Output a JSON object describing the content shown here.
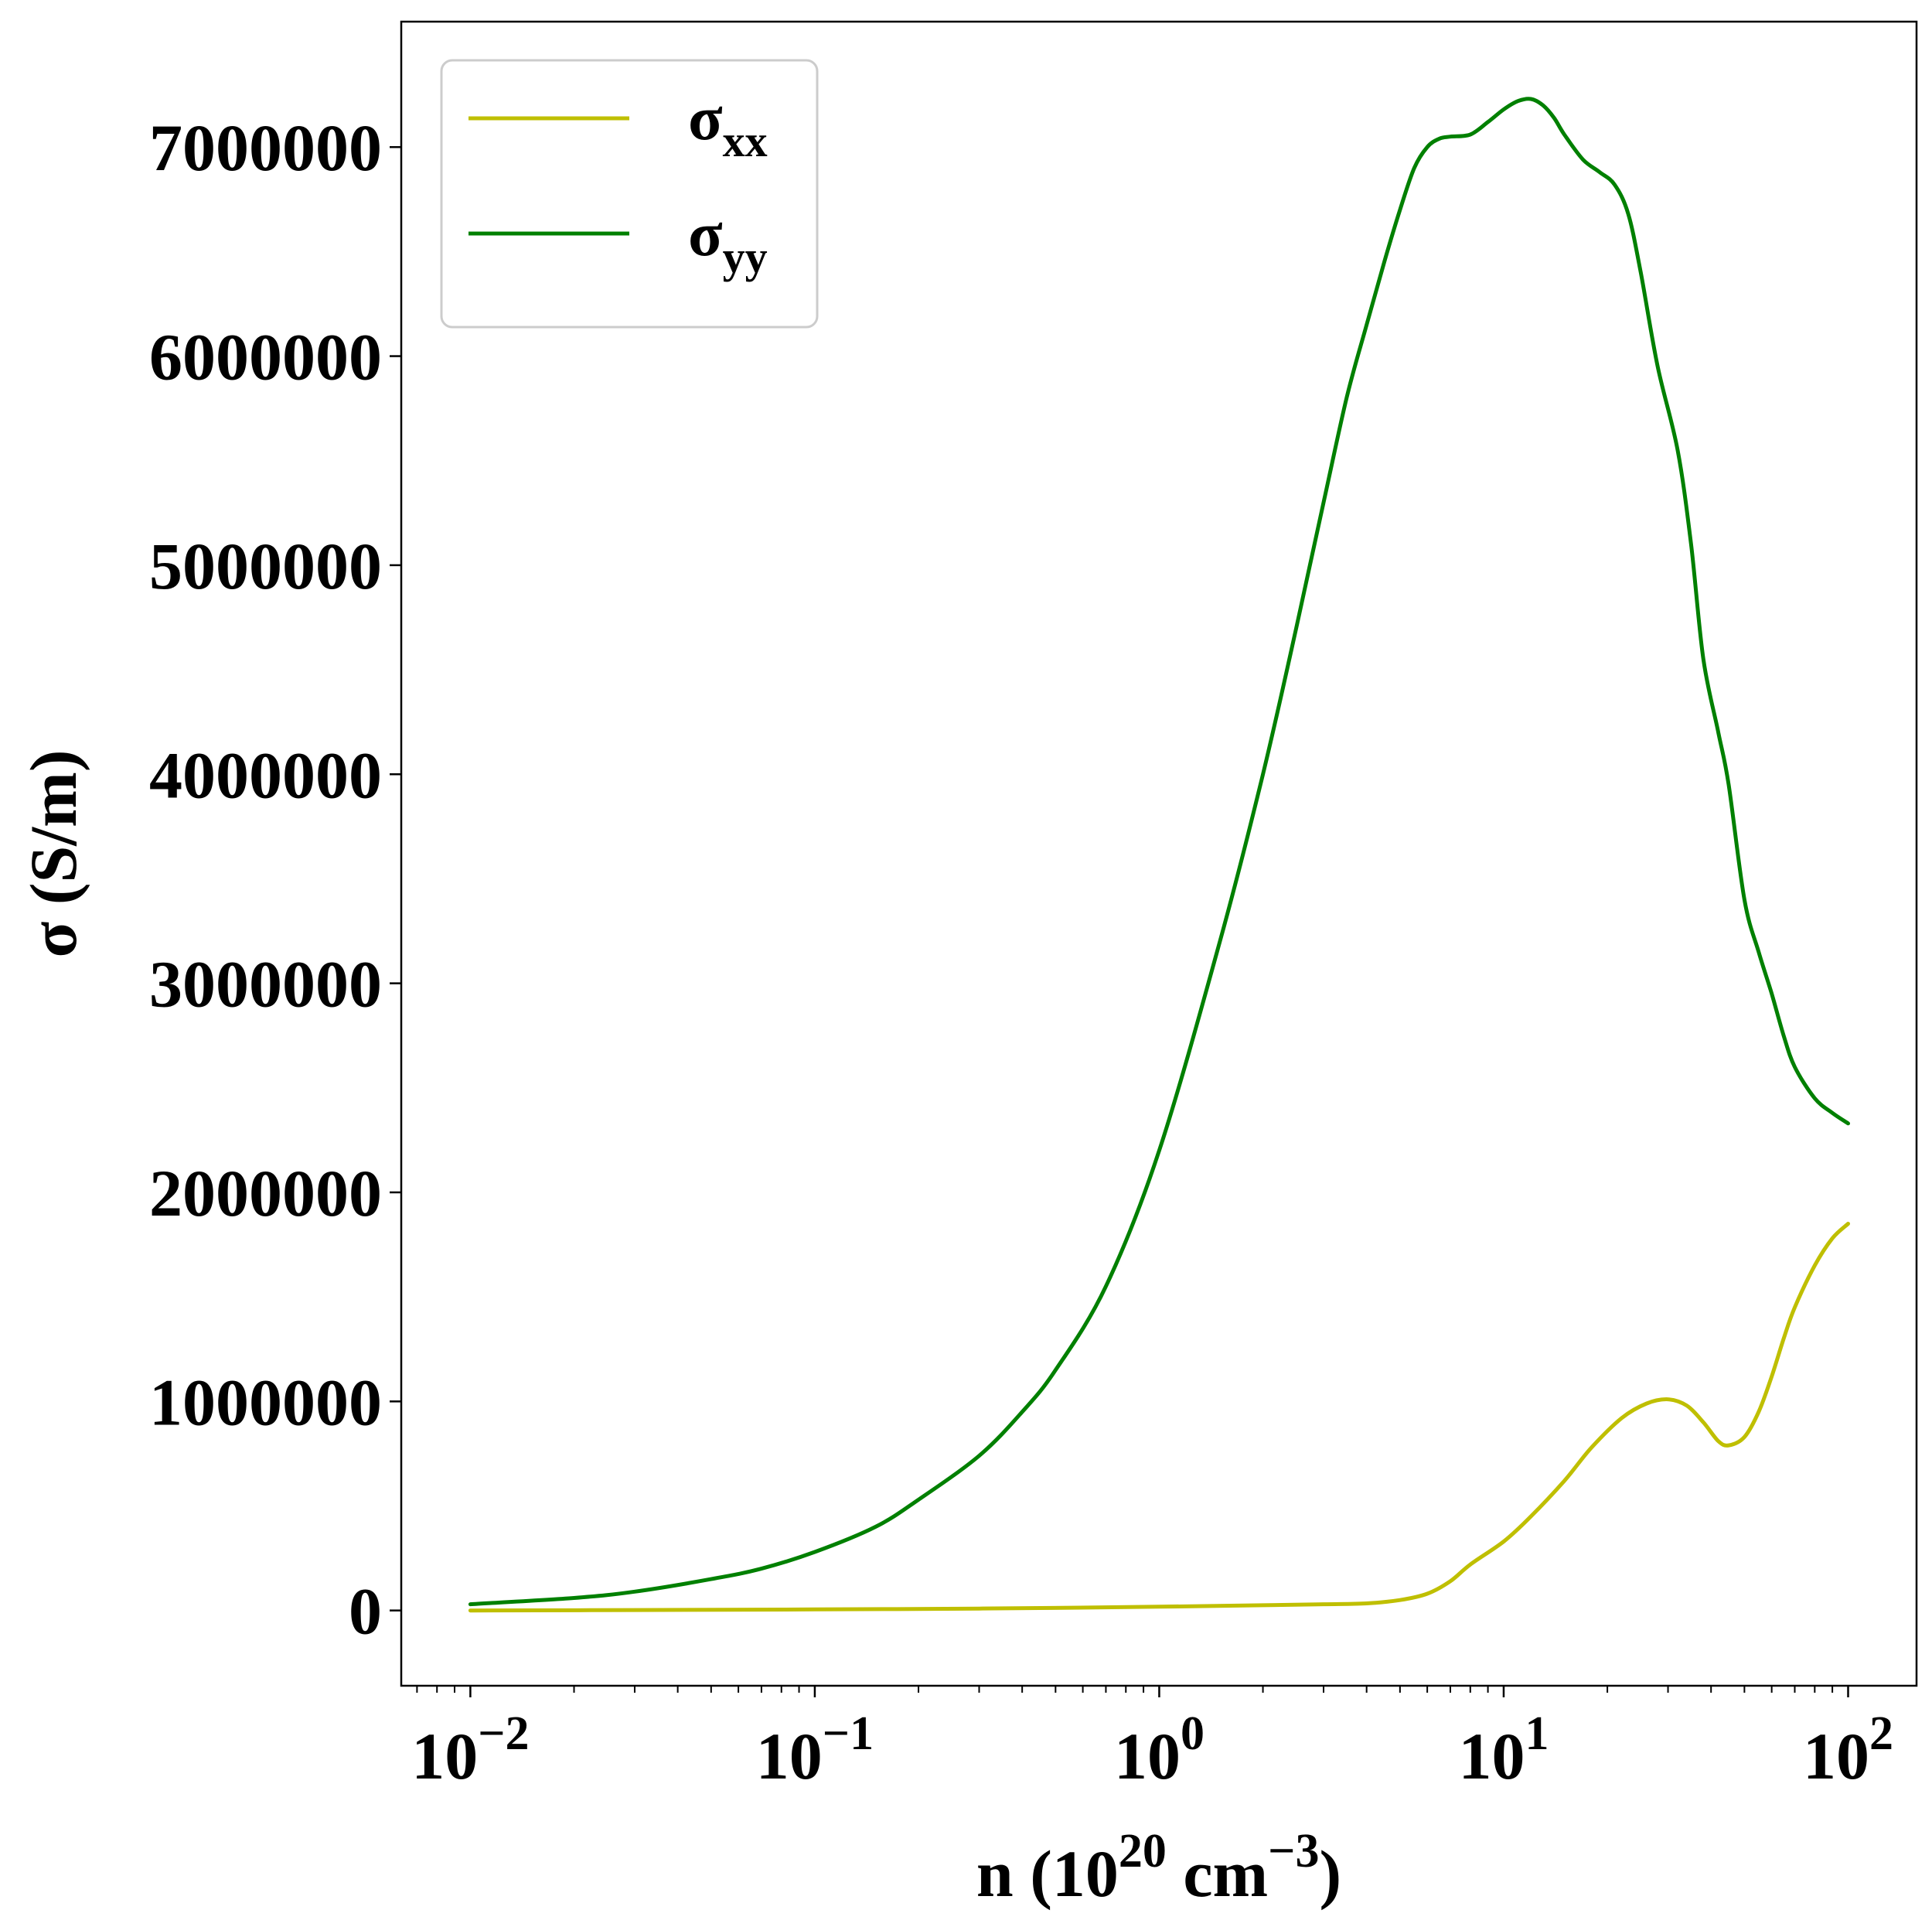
{
  "chart_data": {
    "type": "line",
    "title": "",
    "xlabel": {
      "base": "n (10",
      "exp1": "20",
      "mid": " cm",
      "exp2": "−3",
      "end": ")"
    },
    "ylabel": "σ (S/m)",
    "x_scale": "log",
    "xlim": [
      0.0063,
      158
    ],
    "ylim": [
      -360000,
      7600000
    ],
    "grid": false,
    "legend_position": "top-left",
    "x_ticks": [
      {
        "value": 0.01,
        "base": "10",
        "exp": "−2"
      },
      {
        "value": 0.1,
        "base": "10",
        "exp": "−1"
      },
      {
        "value": 1,
        "base": "10",
        "exp": "0"
      },
      {
        "value": 10,
        "base": "10",
        "exp": "1"
      },
      {
        "value": 100,
        "base": "10",
        "exp": "2"
      }
    ],
    "y_ticks": [
      {
        "value": 0,
        "label": "0"
      },
      {
        "value": 1000000,
        "label": "1000000"
      },
      {
        "value": 2000000,
        "label": "2000000"
      },
      {
        "value": 3000000,
        "label": "3000000"
      },
      {
        "value": 4000000,
        "label": "4000000"
      },
      {
        "value": 5000000,
        "label": "5000000"
      },
      {
        "value": 6000000,
        "label": "6000000"
      },
      {
        "value": 7000000,
        "label": "7000000"
      }
    ],
    "series": [
      {
        "name": "σxx",
        "label_base": "σ",
        "label_sub": "xx",
        "color": "#bfbf00",
        "points": [
          [
            0.01,
            0
          ],
          [
            0.03,
            2000
          ],
          [
            0.1,
            5000
          ],
          [
            0.3,
            9000
          ],
          [
            1,
            18000
          ],
          [
            2,
            25000
          ],
          [
            3,
            30000
          ],
          [
            4,
            34000
          ],
          [
            5,
            50000
          ],
          [
            6,
            80000
          ],
          [
            7,
            140000
          ],
          [
            8,
            220000
          ],
          [
            10,
            330000
          ],
          [
            12,
            450000
          ],
          [
            15,
            620000
          ],
          [
            18,
            780000
          ],
          [
            22,
            920000
          ],
          [
            26,
            990000
          ],
          [
            30,
            1010000
          ],
          [
            34,
            980000
          ],
          [
            38,
            900000
          ],
          [
            42,
            810000
          ],
          [
            45,
            790000
          ],
          [
            50,
            830000
          ],
          [
            55,
            950000
          ],
          [
            60,
            1120000
          ],
          [
            65,
            1300000
          ],
          [
            70,
            1450000
          ],
          [
            80,
            1650000
          ],
          [
            90,
            1780000
          ],
          [
            100,
            1850000
          ]
        ]
      },
      {
        "name": "σyy",
        "label_base": "σ",
        "label_sub": "yy",
        "color": "#008000",
        "points": [
          [
            0.01,
            30000
          ],
          [
            0.02,
            60000
          ],
          [
            0.03,
            90000
          ],
          [
            0.05,
            150000
          ],
          [
            0.07,
            200000
          ],
          [
            0.1,
            280000
          ],
          [
            0.15,
            400000
          ],
          [
            0.2,
            530000
          ],
          [
            0.3,
            740000
          ],
          [
            0.4,
            950000
          ],
          [
            0.5,
            1150000
          ],
          [
            0.7,
            1550000
          ],
          [
            1,
            2200000
          ],
          [
            1.5,
            3200000
          ],
          [
            2,
            4000000
          ],
          [
            2.5,
            4700000
          ],
          [
            3,
            5300000
          ],
          [
            3.5,
            5800000
          ],
          [
            4,
            6150000
          ],
          [
            4.5,
            6450000
          ],
          [
            5,
            6700000
          ],
          [
            5.5,
            6900000
          ],
          [
            6,
            7000000
          ],
          [
            6.5,
            7040000
          ],
          [
            7,
            7050000
          ],
          [
            8,
            7060000
          ],
          [
            9,
            7120000
          ],
          [
            10,
            7180000
          ],
          [
            11,
            7220000
          ],
          [
            12,
            7230000
          ],
          [
            13,
            7200000
          ],
          [
            14,
            7140000
          ],
          [
            15,
            7060000
          ],
          [
            17,
            6940000
          ],
          [
            19,
            6880000
          ],
          [
            21,
            6820000
          ],
          [
            23,
            6680000
          ],
          [
            25,
            6400000
          ],
          [
            28,
            5950000
          ],
          [
            32,
            5550000
          ],
          [
            35,
            5100000
          ],
          [
            38,
            4550000
          ],
          [
            42,
            4200000
          ],
          [
            45,
            3950000
          ],
          [
            50,
            3400000
          ],
          [
            55,
            3150000
          ],
          [
            60,
            2950000
          ],
          [
            65,
            2750000
          ],
          [
            70,
            2600000
          ],
          [
            80,
            2450000
          ],
          [
            90,
            2380000
          ],
          [
            100,
            2330000
          ]
        ]
      }
    ]
  }
}
